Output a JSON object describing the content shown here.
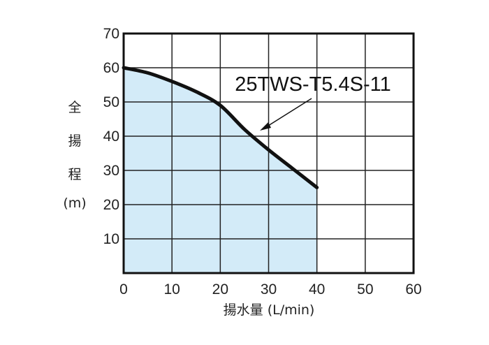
{
  "chart_data": {
    "type": "area",
    "title": "",
    "xlabel": "揚水量 (L/min)",
    "ylabel": [
      "全",
      "揚",
      "程",
      "(m)"
    ],
    "xlim": [
      0,
      60
    ],
    "ylim": [
      0,
      70
    ],
    "xticks": [
      0,
      10,
      20,
      30,
      40,
      50,
      60
    ],
    "yticks": [
      10,
      20,
      30,
      40,
      50,
      60,
      70
    ],
    "grid": true,
    "fill_color": "#d3ebf8",
    "line_color": "#111111",
    "series": [
      {
        "name": "25TWS-T5.4S-11",
        "x": [
          0,
          5,
          10,
          15,
          20,
          25,
          30,
          35,
          40
        ],
        "y": [
          60,
          58.5,
          56,
          53,
          49,
          42,
          36,
          30.5,
          25
        ]
      }
    ],
    "annotation": {
      "text": "25TWS-T5.4S-11",
      "points_to_x": 28
    }
  }
}
